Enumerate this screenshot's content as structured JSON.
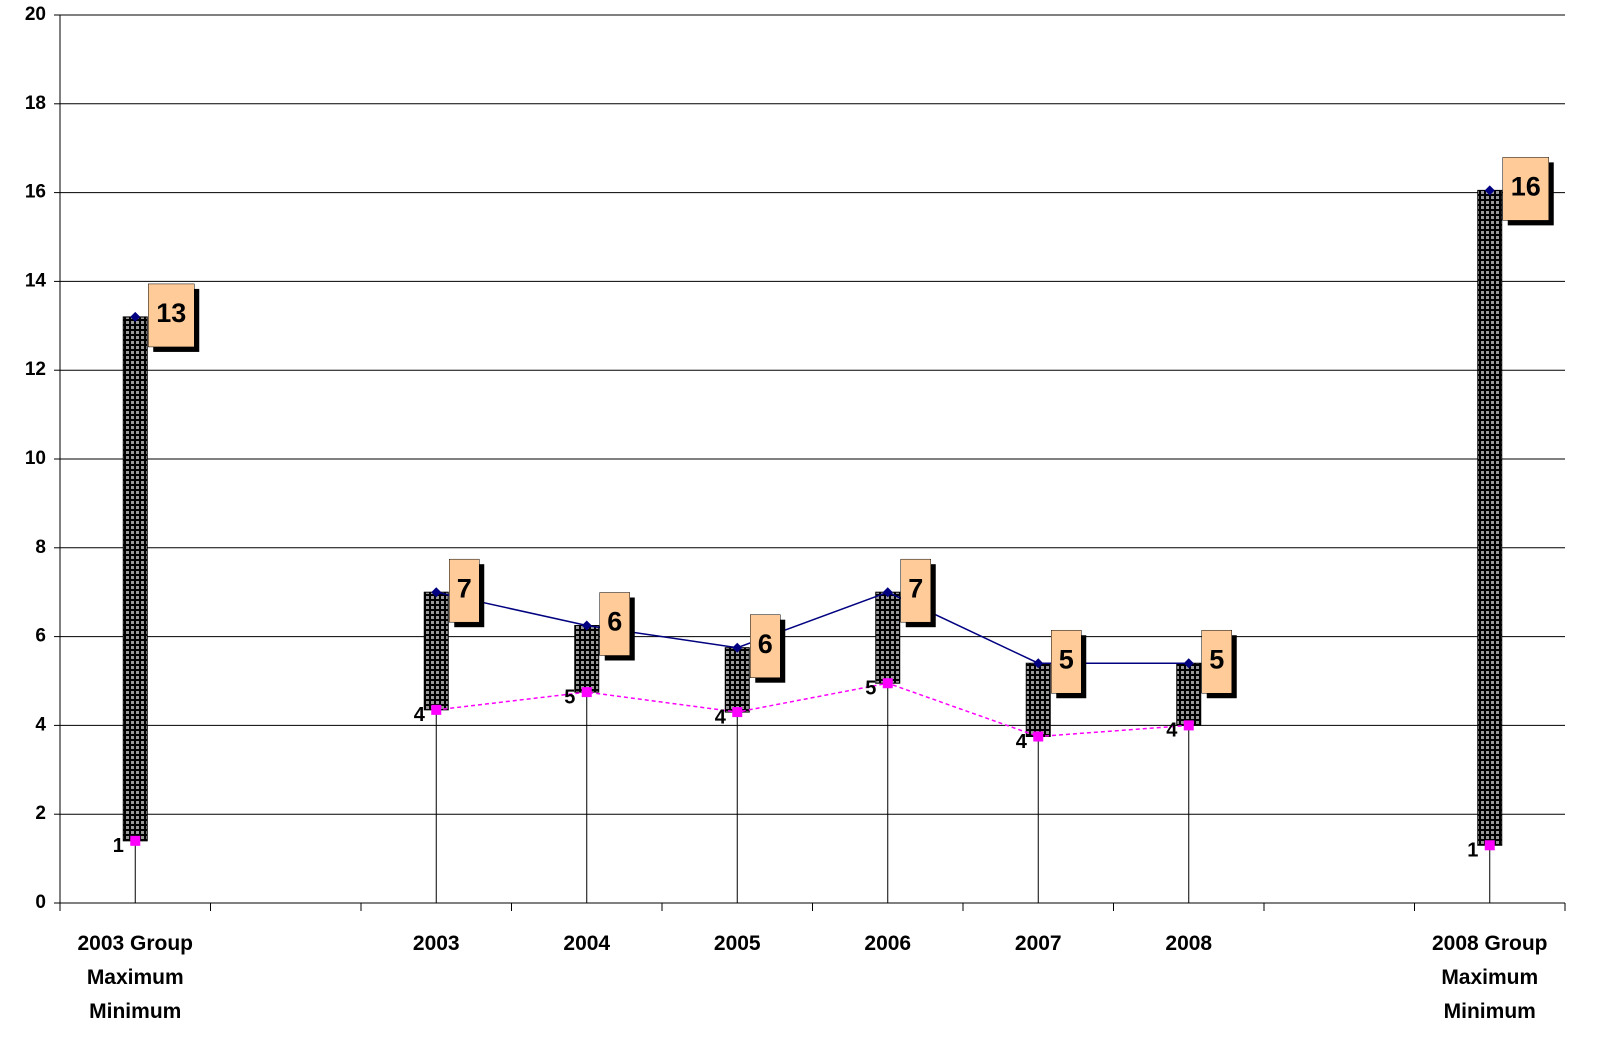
{
  "chart_data": {
    "type": "range",
    "categories": [
      "2003 Group\nMaximum\nMinimum",
      null,
      "2003",
      "2004",
      "2005",
      "2006",
      "2007",
      "2008",
      null,
      "2008 Group\nMaximum\nMinimum"
    ],
    "series": [
      {
        "color": "#000080",
        "line_style": "solid",
        "marker": "diamond",
        "values": [
          13.2,
          null,
          7.0,
          6.25,
          5.75,
          7.0,
          5.4,
          5.4,
          null,
          16.05
        ],
        "value_labels": [
          "13",
          null,
          "7",
          "6",
          "6",
          "7",
          "5",
          "5",
          null,
          "16"
        ]
      },
      {
        "color": "#ff00ff",
        "line_style": "dashed",
        "marker": "square",
        "values": [
          1.4,
          null,
          4.35,
          4.75,
          4.3,
          4.95,
          3.75,
          4.0,
          null,
          1.3
        ],
        "value_labels": [
          "1",
          null,
          "4",
          "5",
          "4",
          "5",
          "4",
          "4",
          null,
          "1"
        ]
      }
    ],
    "ylim": [
      0,
      20
    ],
    "yticks": [
      0,
      2,
      4,
      6,
      8,
      10,
      12,
      14,
      16,
      18,
      20
    ],
    "grid": true
  }
}
